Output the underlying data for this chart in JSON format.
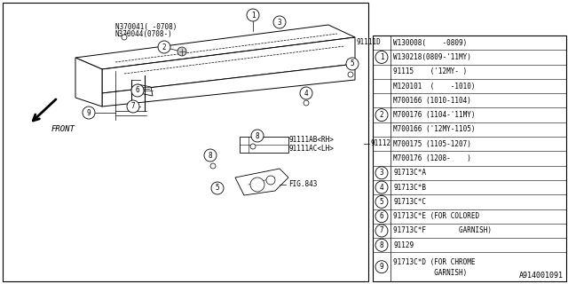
{
  "bg_color": "#ffffff",
  "line_color": "#000000",
  "text_color": "#000000",
  "fig_width": 6.4,
  "fig_height": 3.2,
  "diagram_label": "A914001091",
  "table_rows": [
    {
      "num": null,
      "text": "W130008(    -0809)"
    },
    {
      "num": "1",
      "text": "W130218(0809-'11MY)"
    },
    {
      "num": null,
      "text": "91115    ('12MY- )"
    },
    {
      "num": null,
      "text": "M120101  (    -1010)"
    },
    {
      "num": null,
      "text": "M700166 (1010-1104)"
    },
    {
      "num": "2",
      "text": "M700176 (1104-'11MY)"
    },
    {
      "num": null,
      "text": "M700166 ('12MY-1105)"
    },
    {
      "num": null,
      "text": "M700175 (1105-1207)"
    },
    {
      "num": null,
      "text": "M700176 (1208-    )"
    },
    {
      "num": "3",
      "text": "91713C*A"
    },
    {
      "num": "4",
      "text": "91713C*B"
    },
    {
      "num": "5",
      "text": "91713C*C"
    },
    {
      "num": "6",
      "text": "91713C*E (FOR COLORED"
    },
    {
      "num": "7",
      "text": "91713C*F        GARNISH)"
    },
    {
      "num": "8",
      "text": "91129"
    },
    {
      "num": "9",
      "text": "91713C*D (FOR CHROME\n          GARNISH)"
    }
  ]
}
